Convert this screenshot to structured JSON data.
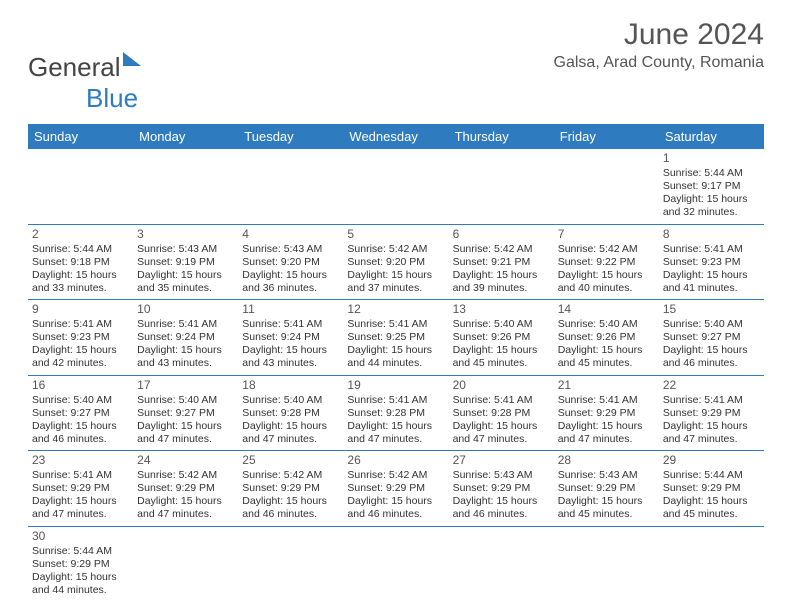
{
  "logo": {
    "part1": "General",
    "part2": "Blue"
  },
  "title": "June 2024",
  "location": "Galsa, Arad County, Romania",
  "colors": {
    "header_bg": "#2e7bbf",
    "text": "#333333",
    "border": "#2e7bbf"
  },
  "weekdays": [
    "Sunday",
    "Monday",
    "Tuesday",
    "Wednesday",
    "Thursday",
    "Friday",
    "Saturday"
  ],
  "weeks": [
    [
      null,
      null,
      null,
      null,
      null,
      null,
      {
        "d": "1",
        "sr": "5:44 AM",
        "ss": "9:17 PM",
        "dl": "15 hours and 32 minutes."
      }
    ],
    [
      {
        "d": "2",
        "sr": "5:44 AM",
        "ss": "9:18 PM",
        "dl": "15 hours and 33 minutes."
      },
      {
        "d": "3",
        "sr": "5:43 AM",
        "ss": "9:19 PM",
        "dl": "15 hours and 35 minutes."
      },
      {
        "d": "4",
        "sr": "5:43 AM",
        "ss": "9:20 PM",
        "dl": "15 hours and 36 minutes."
      },
      {
        "d": "5",
        "sr": "5:42 AM",
        "ss": "9:20 PM",
        "dl": "15 hours and 37 minutes."
      },
      {
        "d": "6",
        "sr": "5:42 AM",
        "ss": "9:21 PM",
        "dl": "15 hours and 39 minutes."
      },
      {
        "d": "7",
        "sr": "5:42 AM",
        "ss": "9:22 PM",
        "dl": "15 hours and 40 minutes."
      },
      {
        "d": "8",
        "sr": "5:41 AM",
        "ss": "9:23 PM",
        "dl": "15 hours and 41 minutes."
      }
    ],
    [
      {
        "d": "9",
        "sr": "5:41 AM",
        "ss": "9:23 PM",
        "dl": "15 hours and 42 minutes."
      },
      {
        "d": "10",
        "sr": "5:41 AM",
        "ss": "9:24 PM",
        "dl": "15 hours and 43 minutes."
      },
      {
        "d": "11",
        "sr": "5:41 AM",
        "ss": "9:24 PM",
        "dl": "15 hours and 43 minutes."
      },
      {
        "d": "12",
        "sr": "5:41 AM",
        "ss": "9:25 PM",
        "dl": "15 hours and 44 minutes."
      },
      {
        "d": "13",
        "sr": "5:40 AM",
        "ss": "9:26 PM",
        "dl": "15 hours and 45 minutes."
      },
      {
        "d": "14",
        "sr": "5:40 AM",
        "ss": "9:26 PM",
        "dl": "15 hours and 45 minutes."
      },
      {
        "d": "15",
        "sr": "5:40 AM",
        "ss": "9:27 PM",
        "dl": "15 hours and 46 minutes."
      }
    ],
    [
      {
        "d": "16",
        "sr": "5:40 AM",
        "ss": "9:27 PM",
        "dl": "15 hours and 46 minutes."
      },
      {
        "d": "17",
        "sr": "5:40 AM",
        "ss": "9:27 PM",
        "dl": "15 hours and 47 minutes."
      },
      {
        "d": "18",
        "sr": "5:40 AM",
        "ss": "9:28 PM",
        "dl": "15 hours and 47 minutes."
      },
      {
        "d": "19",
        "sr": "5:41 AM",
        "ss": "9:28 PM",
        "dl": "15 hours and 47 minutes."
      },
      {
        "d": "20",
        "sr": "5:41 AM",
        "ss": "9:28 PM",
        "dl": "15 hours and 47 minutes."
      },
      {
        "d": "21",
        "sr": "5:41 AM",
        "ss": "9:29 PM",
        "dl": "15 hours and 47 minutes."
      },
      {
        "d": "22",
        "sr": "5:41 AM",
        "ss": "9:29 PM",
        "dl": "15 hours and 47 minutes."
      }
    ],
    [
      {
        "d": "23",
        "sr": "5:41 AM",
        "ss": "9:29 PM",
        "dl": "15 hours and 47 minutes."
      },
      {
        "d": "24",
        "sr": "5:42 AM",
        "ss": "9:29 PM",
        "dl": "15 hours and 47 minutes."
      },
      {
        "d": "25",
        "sr": "5:42 AM",
        "ss": "9:29 PM",
        "dl": "15 hours and 46 minutes."
      },
      {
        "d": "26",
        "sr": "5:42 AM",
        "ss": "9:29 PM",
        "dl": "15 hours and 46 minutes."
      },
      {
        "d": "27",
        "sr": "5:43 AM",
        "ss": "9:29 PM",
        "dl": "15 hours and 46 minutes."
      },
      {
        "d": "28",
        "sr": "5:43 AM",
        "ss": "9:29 PM",
        "dl": "15 hours and 45 minutes."
      },
      {
        "d": "29",
        "sr": "5:44 AM",
        "ss": "9:29 PM",
        "dl": "15 hours and 45 minutes."
      }
    ],
    [
      {
        "d": "30",
        "sr": "5:44 AM",
        "ss": "9:29 PM",
        "dl": "15 hours and 44 minutes."
      },
      null,
      null,
      null,
      null,
      null,
      null
    ]
  ],
  "labels": {
    "sunrise": "Sunrise: ",
    "sunset": "Sunset: ",
    "daylight": "Daylight: "
  }
}
